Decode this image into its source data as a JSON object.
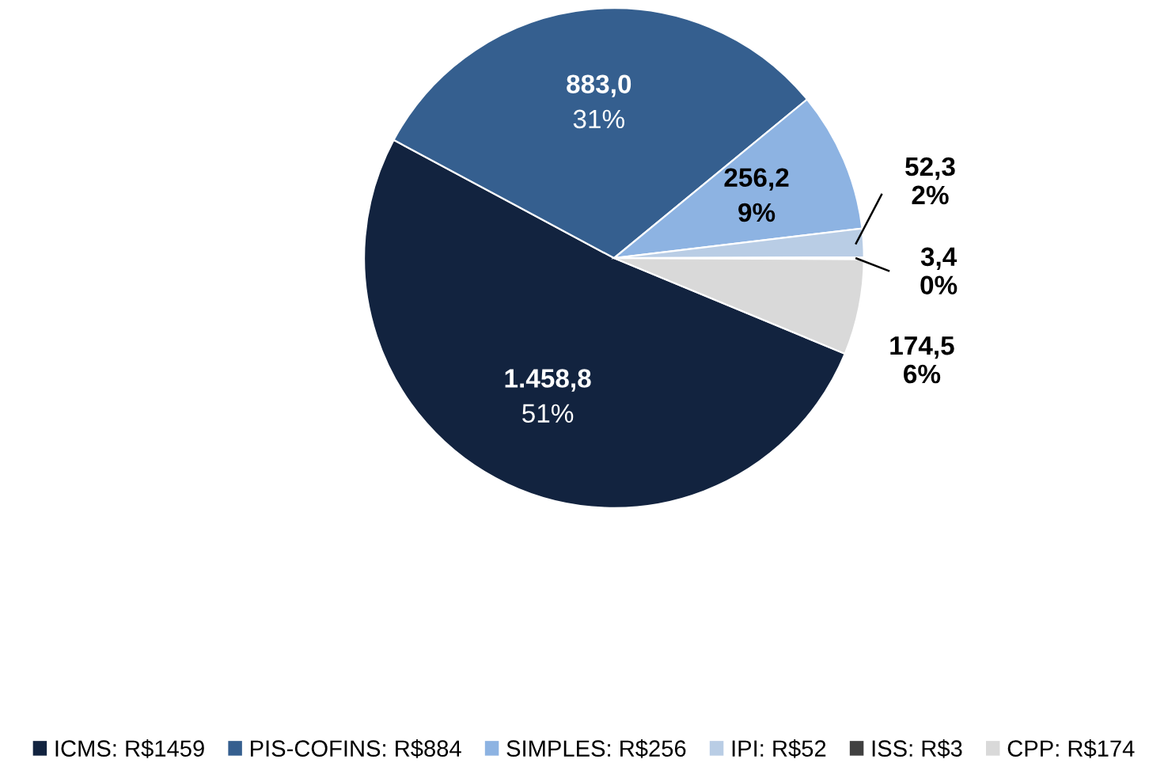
{
  "chart_data": {
    "type": "pie",
    "categories": [
      "ICMS: R$1459",
      "PIS-COFINS: R$884",
      "SIMPLES: R$256",
      "IPI: R$52",
      "ISS: R$3",
      "CPP: R$174"
    ],
    "values": [
      1458.8,
      883.0,
      256.2,
      52.3,
      3.4,
      174.5
    ],
    "colors": [
      "#12233f",
      "#355f8f",
      "#8db3e2",
      "#b9cde5",
      "#404040",
      "#d9d9d9"
    ],
    "value_labels": [
      "1.458,8\n51%",
      "883,0\n31%",
      "256,2\n9%",
      "52,3\n2%",
      "3,4\n0%",
      "174,5\n6%"
    ],
    "legend": "bottom"
  }
}
